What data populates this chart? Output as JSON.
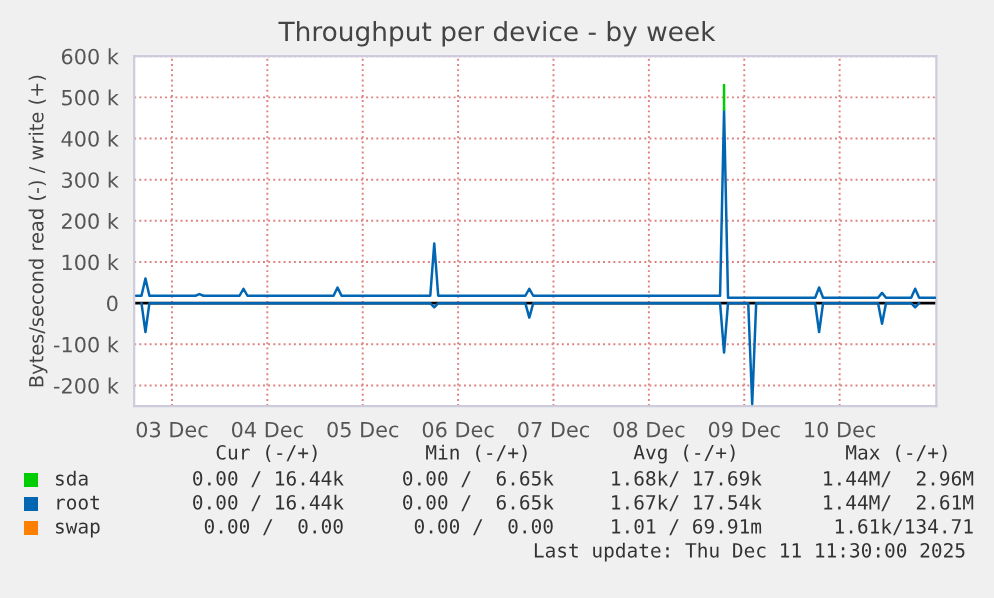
{
  "chart_data": {
    "type": "line",
    "title": "Throughput per device - by week",
    "ylabel": "Bytes/second read (-) / write (+)",
    "x": [
      "2025-12-03T03:00",
      "2025-12-03T04:20",
      "2025-12-03T05:20",
      "2025-12-03T06:20",
      "2025-12-03T17:55",
      "2025-12-03T18:55",
      "2025-12-03T19:55",
      "2025-12-04T05:00",
      "2025-12-04T06:00",
      "2025-12-04T07:00",
      "2025-12-05T04:40",
      "2025-12-05T05:40",
      "2025-12-05T06:40",
      "2025-12-06T05:00",
      "2025-12-06T06:00",
      "2025-12-06T07:00",
      "2025-12-07T04:55",
      "2025-12-07T05:55",
      "2025-12-07T06:55",
      "2025-12-09T05:55",
      "2025-12-09T06:55",
      "2025-12-09T07:55",
      "2025-12-09T13:00",
      "2025-12-09T14:00",
      "2025-12-09T15:00",
      "2025-12-10T05:50",
      "2025-12-10T06:50",
      "2025-12-10T07:50",
      "2025-12-10T21:40",
      "2025-12-10T22:40",
      "2025-12-10T23:40",
      "2025-12-11T06:00",
      "2025-12-11T07:00",
      "2025-12-11T08:00",
      "2025-12-11T12:00"
    ],
    "series": [
      {
        "name": "sda",
        "color": "#00cc00",
        "x": [
          "2025-12-09T06:55",
          "2025-12-09T06:55"
        ],
        "values": [
          470000,
          530000
        ]
      },
      {
        "name": "root",
        "color": "#0066b3",
        "values": [
          18000,
          18000,
          60000,
          18000,
          18000,
          22000,
          18000,
          18000,
          35000,
          18000,
          18000,
          38000,
          18000,
          18000,
          145000,
          18000,
          18000,
          35000,
          18000,
          18000,
          470000,
          13000,
          13000,
          13000,
          13000,
          13000,
          38000,
          13000,
          13000,
          25000,
          13000,
          13000,
          35000,
          13000,
          13000
        ]
      },
      {
        "color": "#0066b3",
        "values": [
          null,
          0,
          -70000,
          0,
          null,
          null,
          null,
          null,
          null,
          null,
          null,
          null,
          null,
          0,
          -10000,
          0,
          0,
          -35000,
          0,
          0,
          -120000,
          0,
          0,
          -245000,
          0,
          0,
          -70000,
          0,
          0,
          -50000,
          0,
          0,
          -10000,
          0,
          null
        ]
      },
      {
        "name": "swap",
        "color": "#ff8000",
        "values": [
          null,
          null,
          null,
          null,
          null,
          null,
          null,
          null,
          null,
          null,
          null,
          null,
          null,
          null,
          null,
          null,
          null,
          null,
          null,
          null,
          null,
          null,
          null,
          null,
          null,
          null,
          null,
          null,
          null,
          null,
          null,
          null,
          null,
          null,
          null
        ]
      }
    ],
    "xlim": [
      "2025-12-03T02:30",
      "2025-12-11T12:20"
    ],
    "xticks": [
      {
        "value": "2025-12-03T12:00",
        "label": "03 Dec"
      },
      {
        "value": "2025-12-04T12:00",
        "label": "04 Dec"
      },
      {
        "value": "2025-12-05T12:00",
        "label": "05 Dec"
      },
      {
        "value": "2025-12-06T12:00",
        "label": "06 Dec"
      },
      {
        "value": "2025-12-07T12:00",
        "label": "07 Dec"
      },
      {
        "value": "2025-12-08T12:00",
        "label": "08 Dec"
      },
      {
        "value": "2025-12-09T12:00",
        "label": "09 Dec"
      },
      {
        "value": "2025-12-10T12:00",
        "label": "10 Dec"
      }
    ],
    "ylim": [
      -250000,
      600000
    ],
    "yticks": [
      {
        "value": -200000,
        "label": "-200 k"
      },
      {
        "value": -100000,
        "label": "-100 k"
      },
      0,
      {
        "value": 100000,
        "label": "100 k"
      },
      {
        "value": 200000,
        "label": "200 k"
      },
      {
        "value": 300000,
        "label": "300 k"
      },
      {
        "value": 400000,
        "label": "400 k"
      },
      {
        "value": 500000,
        "label": "500 k"
      },
      {
        "value": 600000,
        "label": "600 k"
      }
    ],
    "ref_lines": [
      {
        "axis": "y",
        "value": 0,
        "color": "#000000"
      }
    ],
    "grid": true,
    "legend": "bottom",
    "annotations": [
      "Cur (-/+)",
      "Min (-/+)",
      "Avg (-/+)",
      "Max (-/+)",
      "0.00 / 16.44k",
      "0.00 /  6.65k",
      "1.68k/ 17.69k",
      "1.44M/  2.96M",
      "0.00 / 16.44k",
      "0.00 /  6.65k",
      "1.67k/ 17.54k",
      "1.44M/  2.61M",
      "0.00 /  0.00",
      "0.00 /  0.00",
      "1.01 / 69.91m",
      "1.61k/134.71",
      "Last update: Thu Dec 11 11:30:00 2025"
    ]
  }
}
